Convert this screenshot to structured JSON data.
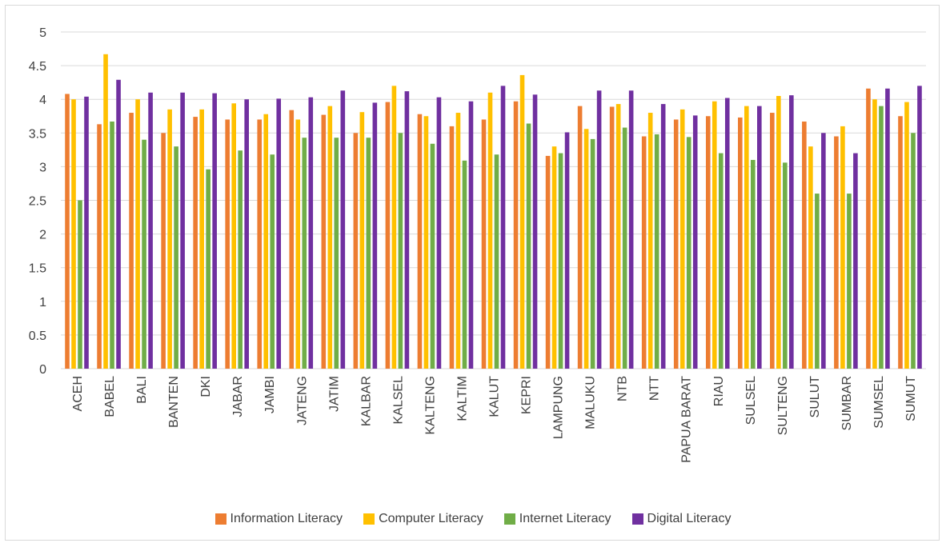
{
  "chart_data": {
    "type": "bar",
    "title": "",
    "xlabel": "",
    "ylabel": "",
    "ylim": [
      0,
      5
    ],
    "yticks": [
      "0",
      "0.5",
      "1",
      "1.5",
      "2",
      "2.5",
      "3",
      "3.5",
      "4",
      "4.5",
      "5"
    ],
    "grid": true,
    "legend_position": "bottom",
    "categories": [
      "ACEH",
      "BABEL",
      "BALI",
      "BANTEN",
      "DKI",
      "JABAR",
      "JAMBI",
      "JATENG",
      "JATIM",
      "KALBAR",
      "KALSEL",
      "KALTENG",
      "KALTIM",
      "KALUT",
      "KEPRI",
      "LAMPUNG",
      "MALUKU",
      "NTB",
      "NTT",
      "PAPUA BARAT",
      "RIAU",
      "SULSEL",
      "SULTENG",
      "SULUT",
      "SUMBAR",
      "SUMSEL",
      "SUMUT"
    ],
    "series": [
      {
        "name": "Information Literacy",
        "color": "#ED7D31",
        "values": [
          4.08,
          3.63,
          3.8,
          3.5,
          3.74,
          3.7,
          3.7,
          3.84,
          3.77,
          3.5,
          3.96,
          3.78,
          3.6,
          3.7,
          3.97,
          3.16,
          3.9,
          3.89,
          3.45,
          3.7,
          3.75,
          3.73,
          3.8,
          3.67,
          3.45,
          4.16,
          3.75
        ]
      },
      {
        "name": "Computer Literacy",
        "color": "#FFC000",
        "values": [
          4.0,
          4.67,
          4.0,
          3.85,
          3.85,
          3.94,
          3.78,
          3.7,
          3.9,
          3.81,
          4.2,
          3.75,
          3.8,
          4.1,
          4.36,
          3.3,
          3.56,
          3.93,
          3.8,
          3.85,
          3.97,
          3.9,
          4.05,
          3.3,
          3.6,
          4.0,
          3.96
        ]
      },
      {
        "name": "Internet Literacy",
        "color": "#70AD47",
        "values": [
          2.5,
          3.67,
          3.4,
          3.3,
          2.96,
          3.24,
          3.18,
          3.43,
          3.43,
          3.43,
          3.5,
          3.34,
          3.09,
          3.18,
          3.64,
          3.2,
          3.41,
          3.58,
          3.48,
          3.44,
          3.2,
          3.1,
          3.06,
          2.6,
          2.6,
          3.9,
          3.5
        ]
      },
      {
        "name": "Digital Literacy",
        "color": "#7030A0",
        "values": [
          4.04,
          4.29,
          4.1,
          4.1,
          4.09,
          4.0,
          4.01,
          4.03,
          4.13,
          3.95,
          4.12,
          4.03,
          3.97,
          4.2,
          4.07,
          3.51,
          4.13,
          4.13,
          3.93,
          3.76,
          4.02,
          3.9,
          4.06,
          3.5,
          3.2,
          4.16,
          4.2
        ]
      }
    ]
  }
}
